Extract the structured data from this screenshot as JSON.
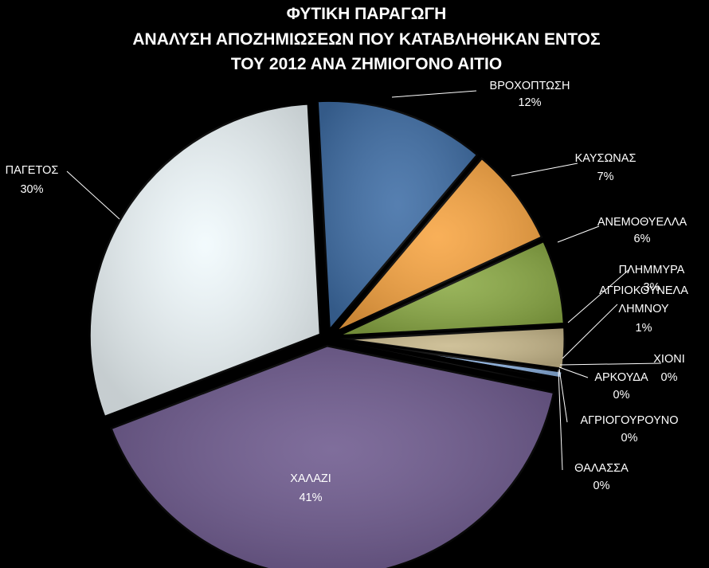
{
  "chart_data": {
    "type": "pie",
    "title_lines": [
      "ΦΥΤΙΚΗ ΠΑΡΑΓΩΓΗ",
      "ΑΝΑΛΥΣΗ ΑΠΟΖΗΜΙΩΣΕΩΝ ΠΟΥ ΚΑΤΑΒΛΗΘΗΚΑΝ ΕΝΤΟΣ",
      "ΤΟΥ 2012 ΑΝΑ ΖΗΜΙΟΓΟΝΟ ΑΙΤΙΟ"
    ],
    "slices": [
      {
        "label": "ΒΡΟΧΟΠΤΩΣΗ",
        "value": 12,
        "pct": "12%",
        "color": "#3F6EA6"
      },
      {
        "label": "ΚΑΥΣΩΝΑΣ",
        "value": 7,
        "pct": "7%",
        "color": "#F8A542"
      },
      {
        "label": "ΑΝΕΜΟΘΥΕΛΛΑ",
        "value": 6,
        "pct": "6%",
        "color": "#8BAA45"
      },
      {
        "label": "ΠΛΗΜΜΥΡΑ",
        "value": 3,
        "pct": "3%",
        "color": "#C9B98C"
      },
      {
        "label": "ΑΓΡΙΟΚΟΥΝΕΛΑ ΛΗΜΝΟΥ",
        "value": 0.6,
        "pct": "1%",
        "color": "#8EB4E3"
      },
      {
        "label": "ΧΙΟΝΙ",
        "value": 0.2,
        "pct": "0%",
        "color": "#C9B98C"
      },
      {
        "label": "ΑΡΚΟΥΔΑ",
        "value": 0.1,
        "pct": "0%",
        "color": "#8EB4E3"
      },
      {
        "label": "ΑΓΡΙΟΓΟΥΡΟΥΝΟ",
        "value": 0.1,
        "pct": "0%",
        "color": "#6E5A8E"
      },
      {
        "label": "ΘΑΛΑΣΣΑ",
        "value": 0.1,
        "pct": "0%",
        "color": "#6E5A8E"
      },
      {
        "label": "ΧΑΛΑΖΙ",
        "value": 41,
        "pct": "41%",
        "color": "#6E5A8E"
      },
      {
        "label": "ΠΑΓΕΤΟΣ",
        "value": 30,
        "pct": "30%",
        "color": "#F1FAFD"
      }
    ],
    "legend": "none",
    "data_labels": "category name and percentage"
  }
}
